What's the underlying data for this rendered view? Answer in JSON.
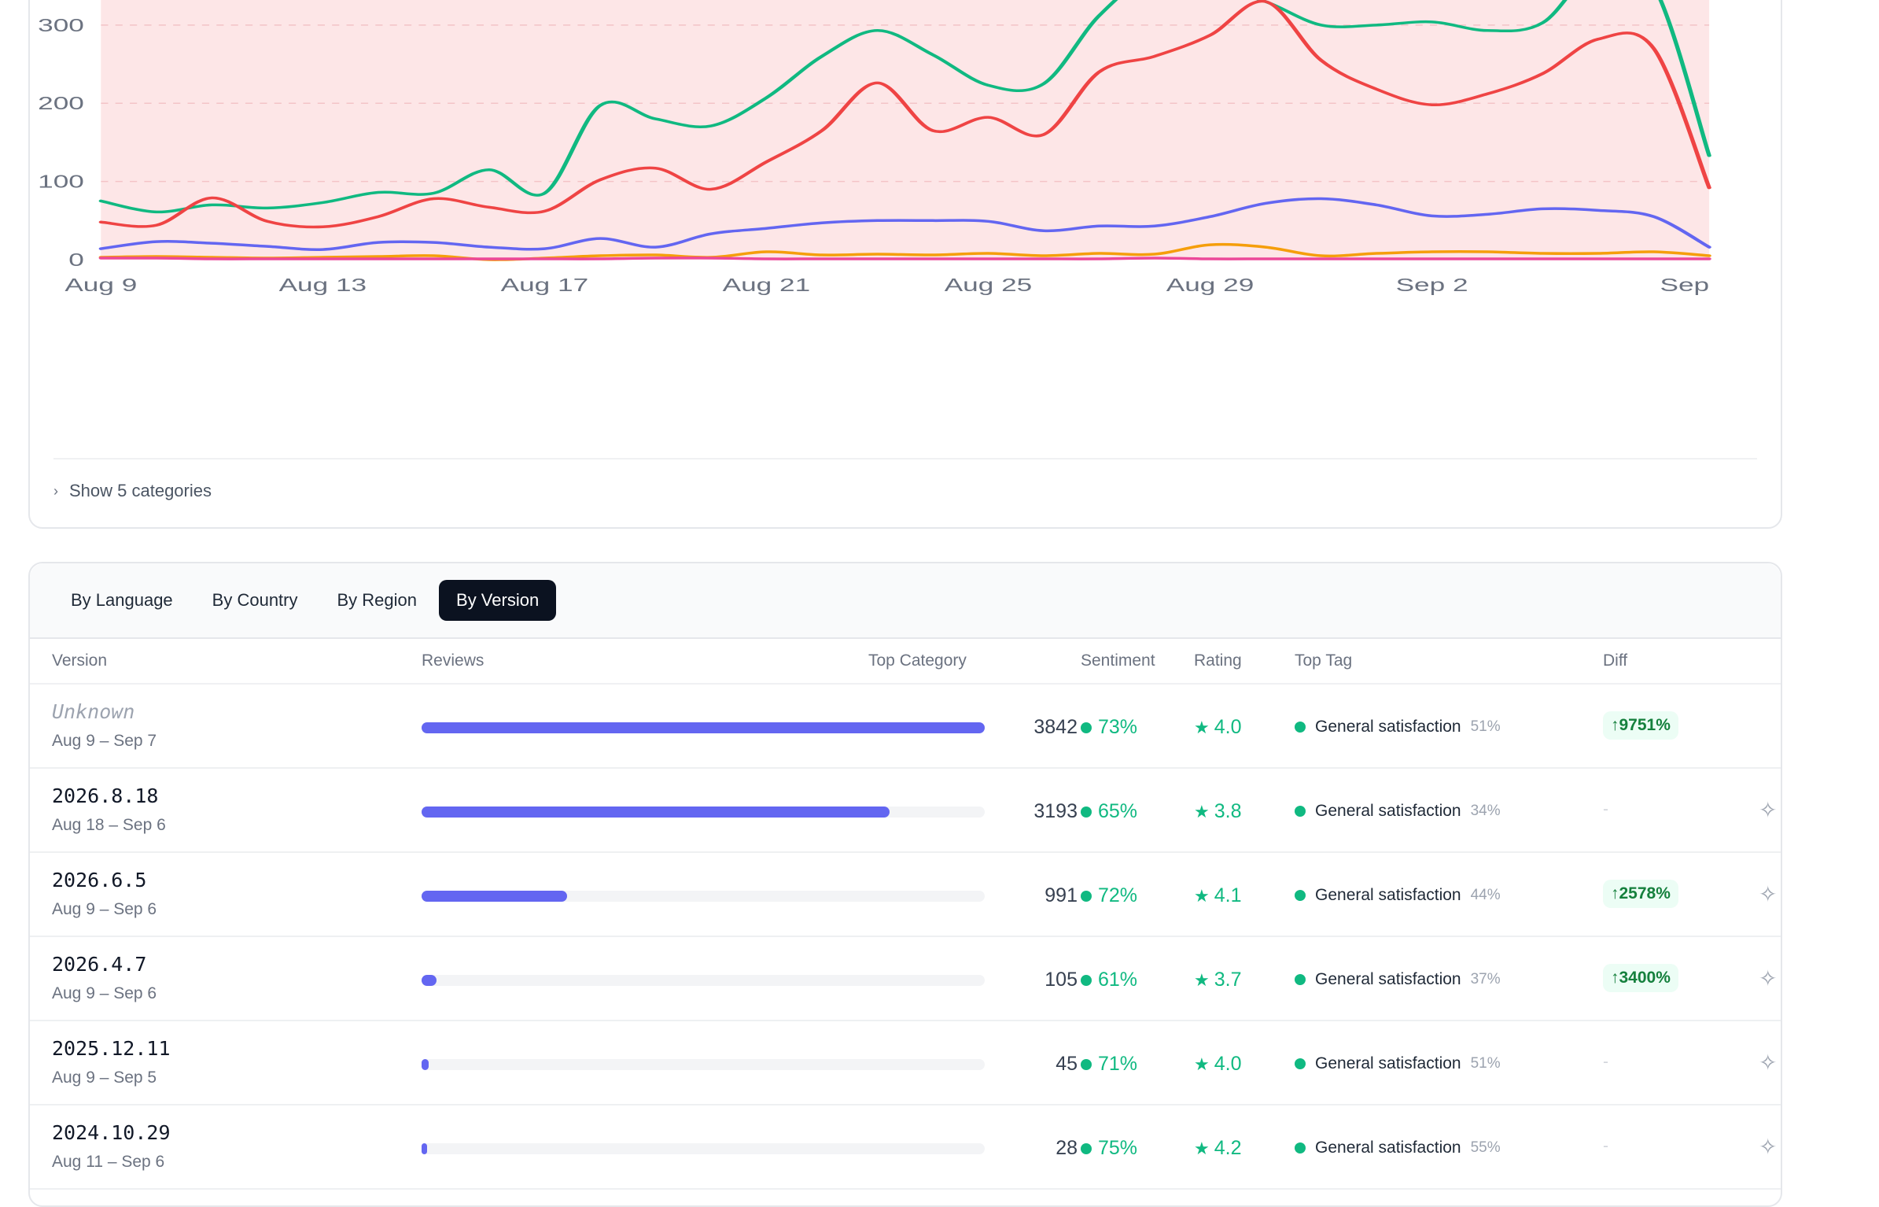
{
  "colors": {
    "green": "#10b981",
    "red": "#ef4444",
    "indigo": "#6366f1",
    "amber": "#f59e0b",
    "pink": "#ec4899",
    "highlight": "#fde6e7"
  },
  "chart_data": {
    "type": "line",
    "title": "",
    "xlabel": "",
    "ylabel": "",
    "ylim": [
      0,
      340
    ],
    "yticks": [
      "0",
      "100",
      "200",
      "300"
    ],
    "xticks": [
      "Aug 9",
      "Aug 13",
      "Aug 17",
      "Aug 21",
      "Aug 25",
      "Aug 29",
      "Sep 2",
      "Sep"
    ],
    "grid": true,
    "x": [
      "Aug 9",
      "Aug 10",
      "Aug 11",
      "Aug 12",
      "Aug 13",
      "Aug 14",
      "Aug 15",
      "Aug 16",
      "Aug 17",
      "Aug 18",
      "Aug 19",
      "Aug 20",
      "Aug 21",
      "Aug 22",
      "Aug 23",
      "Aug 24",
      "Aug 25",
      "Aug 26",
      "Aug 27",
      "Aug 28",
      "Aug 29",
      "Aug 30",
      "Aug 31",
      "Sep 1",
      "Sep 2",
      "Sep 3",
      "Sep 4",
      "Sep 5",
      "Sep 6",
      "Sep 7"
    ],
    "series": [
      {
        "color": "green",
        "values": [
          75,
          61,
          70,
          66,
          73,
          86,
          85,
          115,
          85,
          197,
          180,
          171,
          207,
          260,
          293,
          262,
          223,
          225,
          312,
          365,
          350,
          330,
          300,
          300,
          304,
          293,
          303,
          375,
          350,
          133
        ]
      },
      {
        "color": "red",
        "values": [
          48,
          44,
          79,
          49,
          42,
          55,
          78,
          67,
          62,
          102,
          117,
          90,
          125,
          165,
          226,
          165,
          182,
          160,
          240,
          260,
          287,
          330,
          255,
          218,
          198,
          212,
          238,
          282,
          270,
          92
        ]
      },
      {
        "color": "indigo",
        "values": [
          14,
          23,
          21,
          17,
          13,
          22,
          22,
          16,
          14,
          27,
          16,
          33,
          40,
          47,
          50,
          50,
          49,
          37,
          43,
          43,
          55,
          72,
          78,
          70,
          56,
          58,
          65,
          63,
          55,
          16
        ]
      },
      {
        "color": "amber",
        "values": [
          3,
          4,
          3,
          2,
          3,
          4,
          5,
          0,
          2,
          5,
          6,
          3,
          10,
          6,
          7,
          6,
          8,
          5,
          8,
          7,
          19,
          16,
          5,
          8,
          10,
          10,
          8,
          8,
          10,
          5
        ]
      },
      {
        "color": "pink",
        "values": [
          2,
          2,
          1,
          1,
          1,
          1,
          1,
          1,
          1,
          1,
          2,
          2,
          1,
          1,
          1,
          1,
          1,
          1,
          1,
          2,
          1,
          1,
          1,
          1,
          1,
          1,
          1,
          1,
          1,
          1
        ]
      }
    ]
  },
  "chart_footer": {
    "show_categories": "Show 5 categories"
  },
  "tabs": [
    "By Language",
    "By Country",
    "By Region",
    "By Version"
  ],
  "active_tab": 3,
  "table": {
    "headers": {
      "version": "Version",
      "reviews": "Reviews",
      "top_category": "Top Category",
      "sentiment": "Sentiment",
      "rating": "Rating",
      "top_tag": "Top Tag",
      "diff": "Diff"
    },
    "rows": [
      {
        "version": "Unknown",
        "range": "Aug 9 – Sep 7",
        "reviews": "3842",
        "bar_fraction": 1.0,
        "sentiment": "73%",
        "rating": "4.0",
        "tag": "General satisfaction",
        "tag_pct": "51%",
        "diff": "↑9751%"
      },
      {
        "version": "2026.8.18",
        "range": "Aug 18 – Sep 6",
        "reviews": "3193",
        "bar_fraction": 0.831,
        "sentiment": "65%",
        "rating": "3.8",
        "tag": "General satisfaction",
        "tag_pct": "34%",
        "diff": "-"
      },
      {
        "version": "2026.6.5",
        "range": "Aug 9 – Sep 6",
        "reviews": "991",
        "bar_fraction": 0.258,
        "sentiment": "72%",
        "rating": "4.1",
        "tag": "General satisfaction",
        "tag_pct": "44%",
        "diff": "↑2578%"
      },
      {
        "version": "2026.4.7",
        "range": "Aug 9 – Sep 6",
        "reviews": "105",
        "bar_fraction": 0.027,
        "sentiment": "61%",
        "rating": "3.7",
        "tag": "General satisfaction",
        "tag_pct": "37%",
        "diff": "↑3400%"
      },
      {
        "version": "2025.12.11",
        "range": "Aug 9 – Sep 5",
        "reviews": "45",
        "bar_fraction": 0.012,
        "sentiment": "71%",
        "rating": "4.0",
        "tag": "General satisfaction",
        "tag_pct": "51%",
        "diff": "-"
      },
      {
        "version": "2024.10.29",
        "range": "Aug 11 – Sep 6",
        "reviews": "28",
        "bar_fraction": 0.007,
        "sentiment": "75%",
        "rating": "4.2",
        "tag": "General satisfaction",
        "tag_pct": "55%",
        "diff": "-"
      }
    ]
  }
}
